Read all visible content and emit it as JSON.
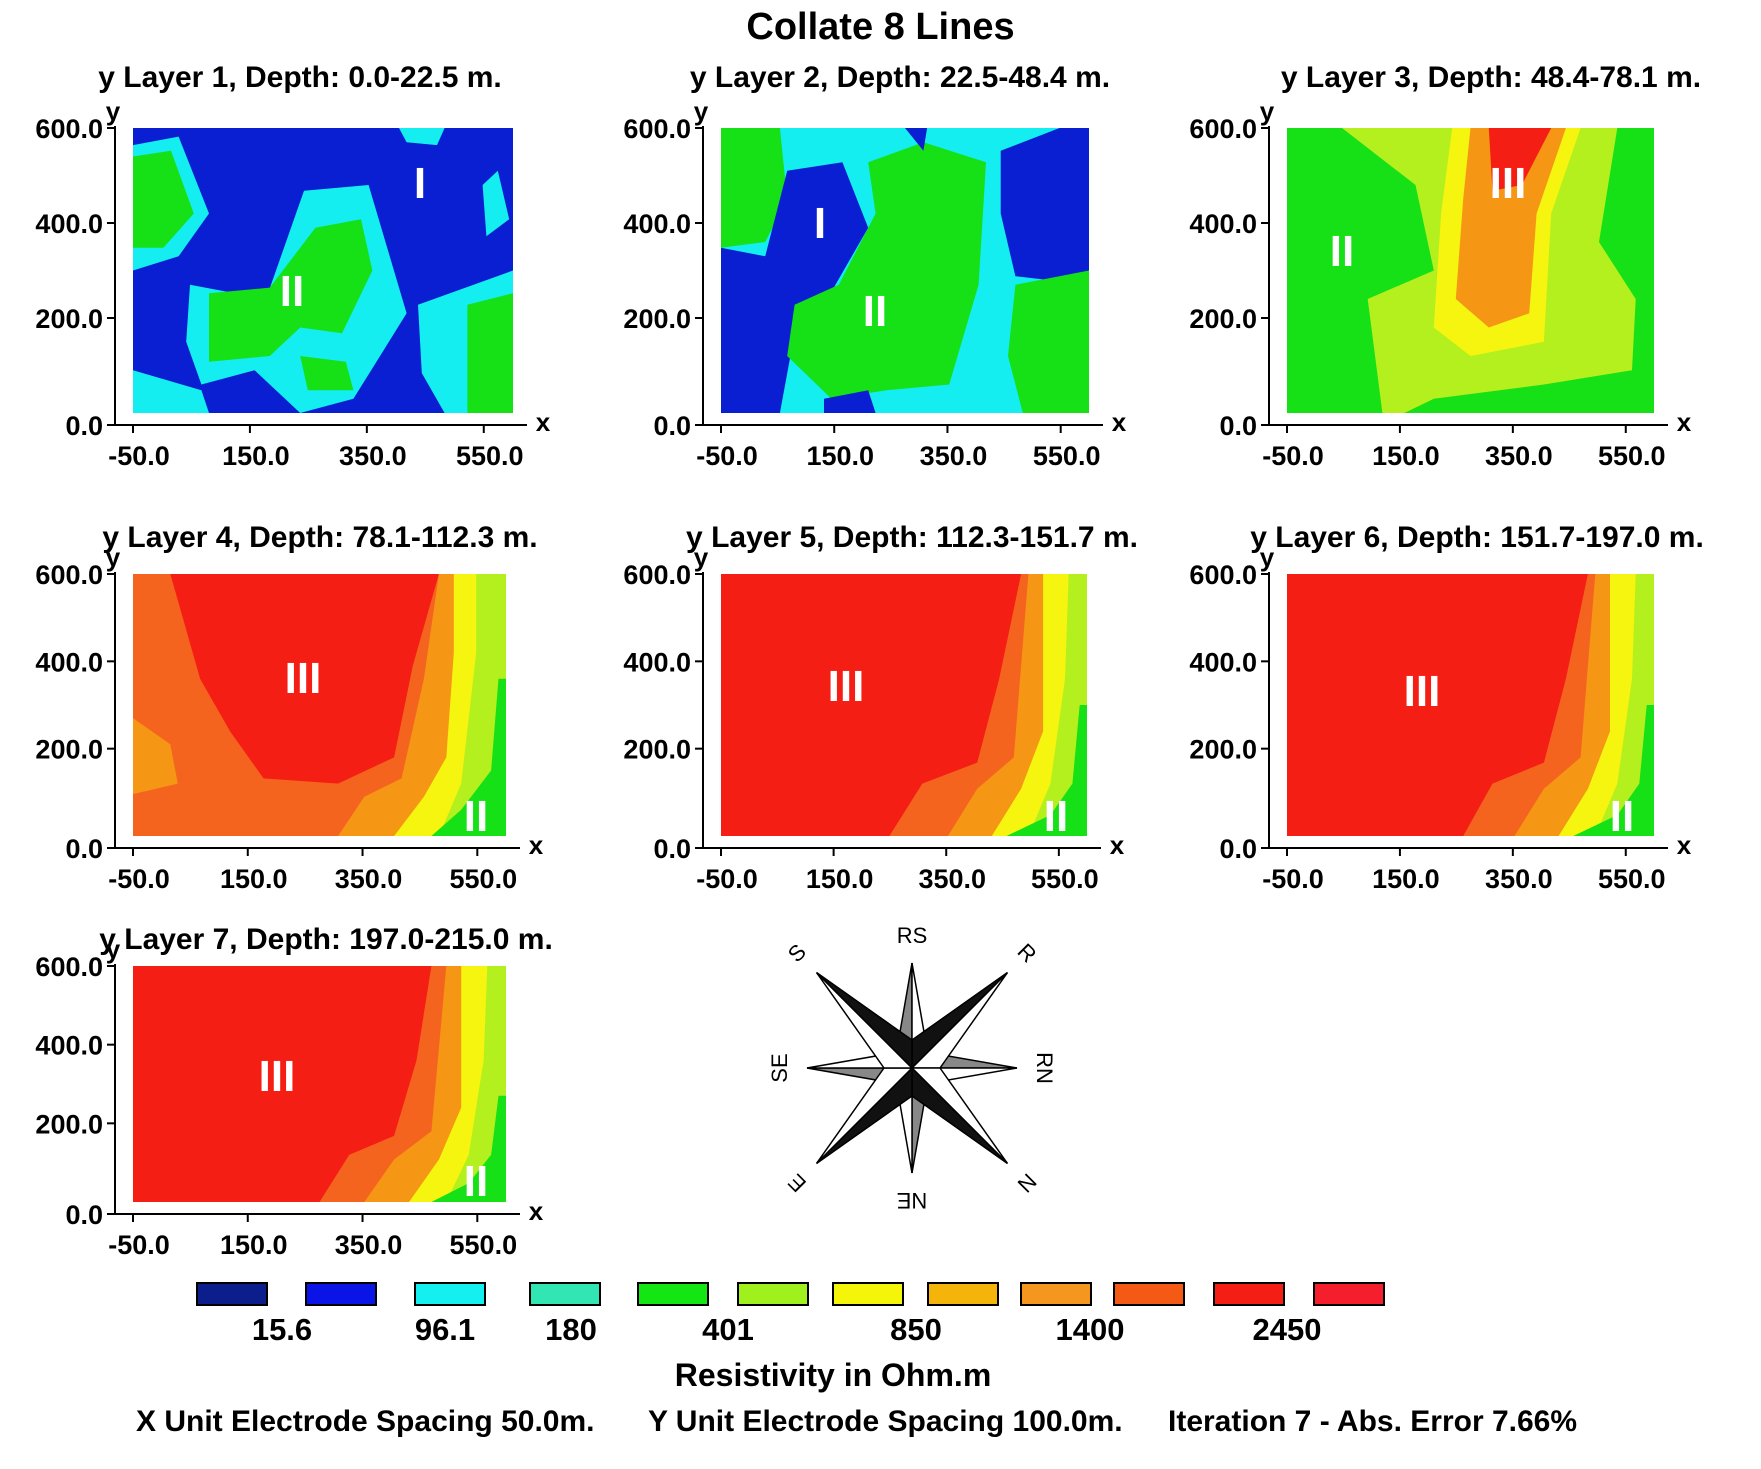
{
  "title": "Collate 8 Lines",
  "chart_data": {
    "type": "heatmap",
    "x_axis_label": "x",
    "y_axis_label": "y",
    "x_ticks": [
      "-50.0",
      "150.0",
      "350.0",
      "550.0"
    ],
    "y_ticks": [
      "0.0",
      "200.0",
      "400.0",
      "600.0"
    ],
    "xlim": [
      -50,
      600
    ],
    "ylim": [
      0,
      600
    ],
    "panels": [
      {
        "title": "y Layer 1, Depth: 0.0-22.5 m.",
        "labels": [
          "I",
          "II"
        ]
      },
      {
        "title": "y Layer 2, Depth: 22.5-48.4 m.",
        "labels": [
          "I",
          "II"
        ]
      },
      {
        "title": "y Layer 3, Depth: 48.4-78.1 m.",
        "labels": [
          "III",
          "II"
        ]
      },
      {
        "title": "y Layer 4, Depth: 78.1-112.3 m.",
        "labels": [
          "III",
          "II"
        ]
      },
      {
        "title": "y Layer 5, Depth: 112.3-151.7 m.",
        "labels": [
          "III",
          "II"
        ]
      },
      {
        "title": "y Layer 6, Depth: 151.7-197.0 m.",
        "labels": [
          "III",
          "II"
        ]
      },
      {
        "title": "y Layer 7, Depth: 197.0-215.0 m.",
        "labels": [
          "III",
          "II"
        ]
      }
    ],
    "colorbar": {
      "title": "Resistivity in Ohm.m",
      "colors": [
        "#0c1e8c",
        "#0a14e6",
        "#14f0f0",
        "#32e6b4",
        "#14e614",
        "#a0f01e",
        "#f5f50a",
        "#f5b40a",
        "#f5961e",
        "#f55a14",
        "#f51e14",
        "#f51e2d"
      ],
      "tick_labels": [
        "15.6",
        "96.1",
        "180",
        "401",
        "850",
        "1400",
        "2450"
      ]
    },
    "colors": {
      "deep_blue": "#0a1ed2",
      "cyan": "#14eef0",
      "green": "#16e016",
      "yellow_green": "#b4f01e",
      "yellow": "#f5f50f",
      "orange": "#f59614",
      "orange_red": "#f5641e",
      "red": "#f51e14"
    }
  },
  "compass": {
    "labels": [
      "RS",
      "R",
      "RN",
      "N",
      "NE",
      "E",
      "SE",
      "S"
    ]
  },
  "footer": {
    "x_spacing": "X Unit Electrode Spacing 50.0m.",
    "y_spacing": "Y Unit Electrode Spacing 100.0m.",
    "iteration": "Iteration 7 - Abs. Error 7.66%"
  }
}
